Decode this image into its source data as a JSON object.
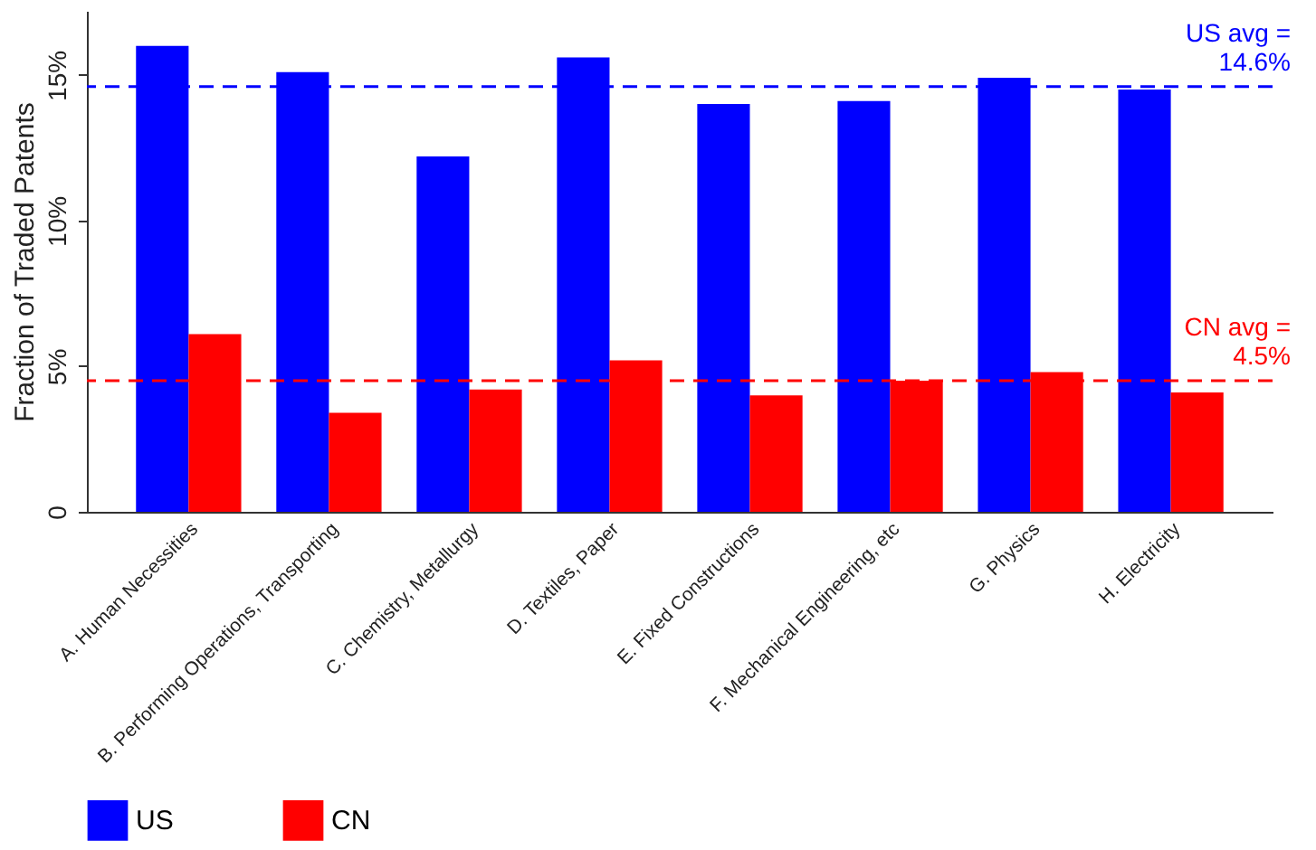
{
  "chart_data": {
    "type": "bar",
    "ylabel": "Fraction of Traded Patents",
    "categories": [
      "A. Human Necessities",
      "B. Performing Operations, Transporting",
      "C. Chemistry, Metallurgy",
      "D. Textiles, Paper",
      "E. Fixed Constructions",
      "F. Mechanical Engineering, etc",
      "G. Physics",
      "H. Electricity"
    ],
    "series": [
      {
        "name": "US",
        "color": "#0000ff",
        "values": [
          16.0,
          15.1,
          12.2,
          15.6,
          14.0,
          14.1,
          14.9,
          14.5
        ]
      },
      {
        "name": "CN",
        "color": "#ff0000",
        "values": [
          6.1,
          3.4,
          4.2,
          5.2,
          4.0,
          4.5,
          4.8,
          4.1
        ]
      }
    ],
    "ylim": [
      0,
      17.2
    ],
    "yticks": [
      0,
      {
        "value": 5,
        "label": "5%"
      },
      {
        "value": 10,
        "label": "10%"
      },
      {
        "value": 15,
        "label": "15%"
      }
    ],
    "ref_lines": [
      {
        "axis": "y",
        "value": 14.6,
        "label": "US avg =\n14.6%",
        "color": "#0000ff",
        "line_style": "dashed"
      },
      {
        "axis": "y",
        "value": 4.5,
        "label": "CN avg =\n4.5%",
        "color": "#ff0000",
        "line_style": "dashed"
      }
    ],
    "legend": "bottom",
    "grid": false
  }
}
